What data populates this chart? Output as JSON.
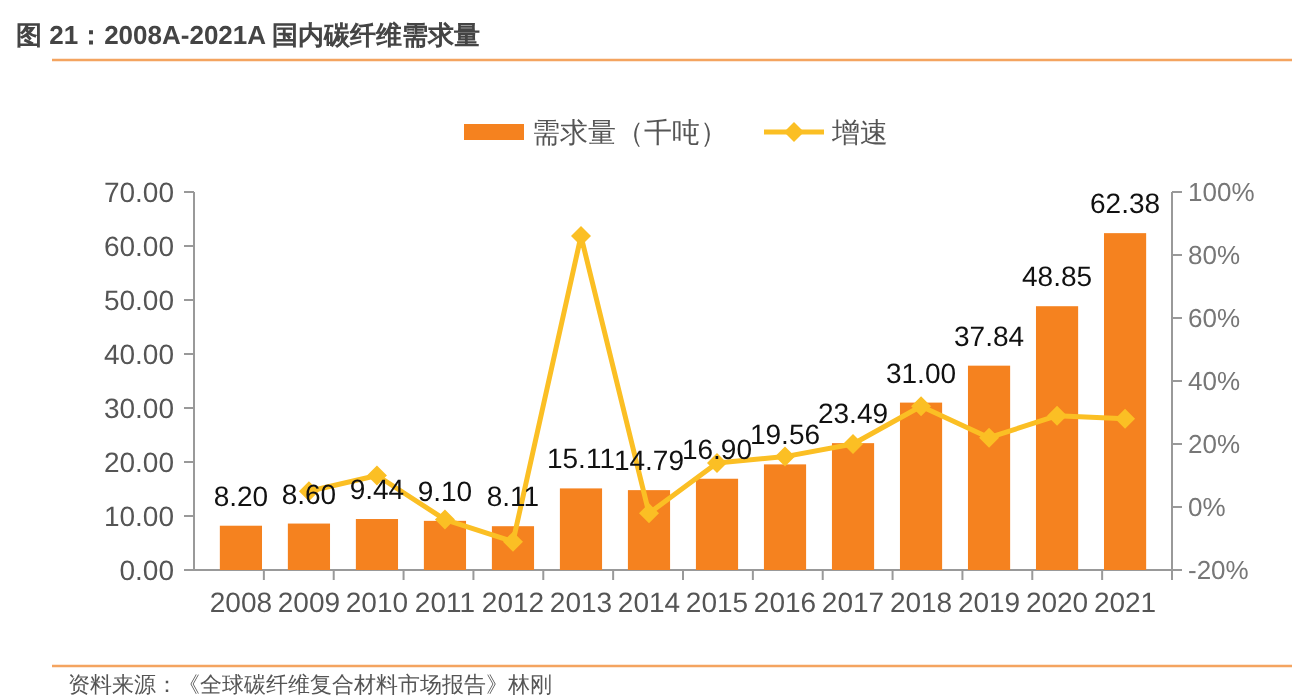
{
  "chart_data": {
    "type": "bar",
    "title": "图 21：2008A-2021A 国内碳纤维需求量",
    "annotations": [
      "资料来源：《全球碳纤维复合材料市场报告》林刚"
    ],
    "categories": [
      "2008",
      "2009",
      "2010",
      "2011",
      "2012",
      "2013",
      "2014",
      "2015",
      "2016",
      "2017",
      "2018",
      "2019",
      "2020",
      "2021"
    ],
    "series": [
      {
        "name": "需求量（千吨）",
        "color": "#f5821f",
        "values": [
          8.2,
          8.6,
          9.44,
          9.1,
          8.11,
          15.11,
          14.79,
          16.9,
          19.56,
          23.49,
          31.0,
          37.84,
          48.85,
          62.38
        ],
        "value_labels": [
          "8.20",
          "8.60",
          "9.44",
          "9.10",
          "8.11",
          "15.11",
          "14.79",
          "16.90",
          "19.56",
          "23.49",
          "31.00",
          "37.84",
          "48.85",
          "62.38"
        ]
      },
      {
        "name": "增速",
        "type": "line",
        "axis": "y2",
        "color": "#fbbf24",
        "marker": "diamond",
        "values": [
          null,
          5,
          10,
          -4,
          -11,
          86,
          -2,
          14,
          16,
          20,
          32,
          22,
          29,
          28
        ]
      }
    ],
    "legend": "top",
    "ylim": [
      0,
      70
    ],
    "yticks": [
      {
        "value": 0,
        "label": "0.00"
      },
      {
        "value": 10,
        "label": "10.00"
      },
      {
        "value": 20,
        "label": "20.00"
      },
      {
        "value": 30,
        "label": "30.00"
      },
      {
        "value": 40,
        "label": "40.00"
      },
      {
        "value": 50,
        "label": "50.00"
      },
      {
        "value": 60,
        "label": "60.00"
      },
      {
        "value": 70,
        "label": "70.00"
      }
    ],
    "y2lim": [
      -20,
      100
    ],
    "y2ticks": [
      {
        "value": -20,
        "label": "-20%"
      },
      {
        "value": 0,
        "label": "0%"
      },
      {
        "value": 20,
        "label": "20%"
      },
      {
        "value": 40,
        "label": "40%"
      },
      {
        "value": 60,
        "label": "60%"
      },
      {
        "value": 80,
        "label": "80%"
      },
      {
        "value": 100,
        "label": "100%"
      }
    ]
  }
}
